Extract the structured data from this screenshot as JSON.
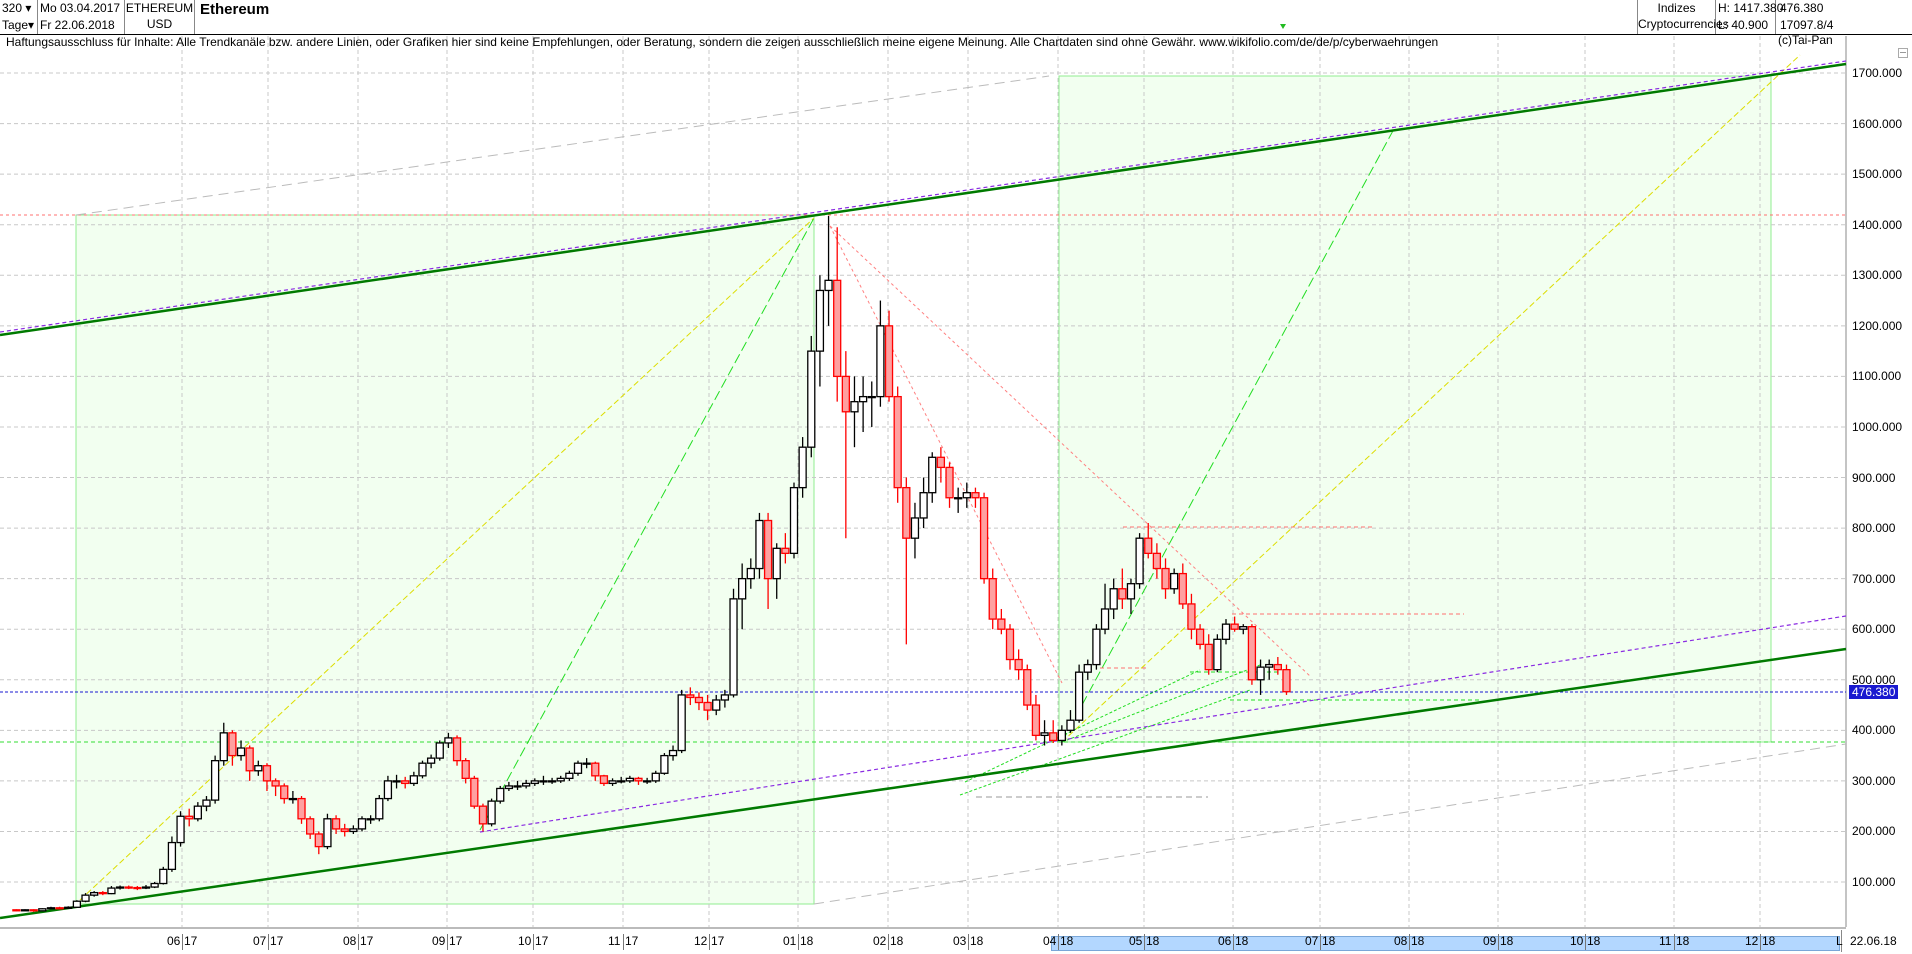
{
  "header": {
    "count": "320",
    "period": "Tage",
    "date_from": "Mo 03.04.2017",
    "date_to": "Fr 22.06.2018",
    "symbol": "ETHEREUM",
    "currency": "USD",
    "title": "Ethereum",
    "group1": "Indizes",
    "group2": "Cryptocurrencies",
    "high": "H: 1417.380",
    "low": "L: 40.900",
    "last": "476.380",
    "volume": "17097.8/4"
  },
  "disclaimer": "Haftungsausschluss für Inhalte: Alle Trendkanäle bzw. andere Linien, oder Grafiken hier sind keine Empfehlungen, oder Beratung, sondern die zeigen ausschließlich meine eigene Meinung. Alle Chartdaten sind ohne Gewähr.  www.wikifolio.com/de/de/p/cyberwaehrungen",
  "copyright": "(c)Tai-Pan",
  "bottom": {
    "mode": "L",
    "date": "22.06.18"
  },
  "colors": {
    "up_fill": "#ffffff",
    "down_fill": "#ffa0a0",
    "down_edge": "#ff0000",
    "channel": "#007a00",
    "price_line": "#1a1ad0",
    "box_fill": "#f2fff0"
  },
  "chart_data": {
    "type": "candlestick",
    "title": "Ethereum",
    "interval_days": 3,
    "start_date": "2017-04-03",
    "ylim": [
      0,
      1750
    ],
    "grid": true,
    "yticks": [
      "100.000",
      "200.000",
      "300.000",
      "400.000",
      "500.000",
      "600.000",
      "700.000",
      "800.000",
      "900.000",
      "1000.000",
      "1100.000",
      "1200.000",
      "1300.000",
      "1400.000",
      "1500.000",
      "1600.000",
      "1700.000"
    ],
    "xticks": [
      {
        "m": "06",
        "y": "17"
      },
      {
        "m": "07",
        "y": "17"
      },
      {
        "m": "08",
        "y": "17"
      },
      {
        "m": "09",
        "y": "17"
      },
      {
        "m": "10",
        "y": "17"
      },
      {
        "m": "11",
        "y": "17"
      },
      {
        "m": "12",
        "y": "17"
      },
      {
        "m": "01",
        "y": "18"
      },
      {
        "m": "02",
        "y": "18"
      },
      {
        "m": "03",
        "y": "18"
      },
      {
        "m": "04",
        "y": "18"
      },
      {
        "m": "05",
        "y": "18"
      },
      {
        "m": "06",
        "y": "18"
      },
      {
        "m": "07",
        "y": "18"
      },
      {
        "m": "08",
        "y": "18"
      },
      {
        "m": "09",
        "y": "18"
      },
      {
        "m": "10",
        "y": "18"
      },
      {
        "m": "11",
        "y": "18"
      },
      {
        "m": "12",
        "y": "18"
      }
    ],
    "last_price": "476.380",
    "ohlc": [
      [
        45,
        46,
        42,
        44
      ],
      [
        44,
        46,
        43,
        45
      ],
      [
        45,
        46,
        40.9,
        43
      ],
      [
        43,
        48,
        42,
        47
      ],
      [
        47,
        51,
        46,
        49
      ],
      [
        49,
        51,
        47,
        48
      ],
      [
        48,
        52,
        47,
        50
      ],
      [
        50,
        64,
        49,
        62
      ],
      [
        62,
        78,
        60,
        74
      ],
      [
        74,
        82,
        71,
        79
      ],
      [
        79,
        82,
        74,
        77
      ],
      [
        77,
        92,
        76,
        88
      ],
      [
        88,
        93,
        85,
        90
      ],
      [
        90,
        93,
        86,
        89
      ],
      [
        89,
        92,
        84,
        88
      ],
      [
        88,
        94,
        86,
        90
      ],
      [
        90,
        100,
        88,
        97
      ],
      [
        97,
        130,
        95,
        125
      ],
      [
        125,
        190,
        120,
        178
      ],
      [
        178,
        240,
        170,
        230
      ],
      [
        230,
        245,
        210,
        225
      ],
      [
        225,
        258,
        220,
        250
      ],
      [
        250,
        270,
        240,
        262
      ],
      [
        262,
        350,
        255,
        340
      ],
      [
        340,
        415,
        330,
        395
      ],
      [
        395,
        400,
        330,
        350
      ],
      [
        350,
        380,
        340,
        365
      ],
      [
        365,
        370,
        300,
        320
      ],
      [
        320,
        340,
        310,
        330
      ],
      [
        330,
        335,
        280,
        300
      ],
      [
        300,
        305,
        270,
        290
      ],
      [
        290,
        295,
        255,
        265
      ],
      [
        265,
        280,
        255,
        265
      ],
      [
        265,
        270,
        215,
        225
      ],
      [
        225,
        230,
        185,
        195
      ],
      [
        195,
        200,
        155,
        170
      ],
      [
        170,
        235,
        165,
        225
      ],
      [
        225,
        232,
        195,
        205
      ],
      [
        205,
        215,
        190,
        200
      ],
      [
        200,
        212,
        195,
        205
      ],
      [
        205,
        230,
        200,
        225
      ],
      [
        225,
        232,
        215,
        225
      ],
      [
        225,
        272,
        220,
        265
      ],
      [
        265,
        310,
        260,
        300
      ],
      [
        300,
        312,
        285,
        300
      ],
      [
        300,
        308,
        285,
        295
      ],
      [
        295,
        318,
        290,
        310
      ],
      [
        310,
        340,
        305,
        335
      ],
      [
        335,
        352,
        325,
        345
      ],
      [
        345,
        380,
        340,
        375
      ],
      [
        375,
        395,
        365,
        385
      ],
      [
        385,
        390,
        330,
        340
      ],
      [
        340,
        345,
        295,
        305
      ],
      [
        305,
        310,
        245,
        250
      ],
      [
        250,
        255,
        200,
        215
      ],
      [
        215,
        265,
        210,
        260
      ],
      [
        260,
        290,
        255,
        285
      ],
      [
        285,
        298,
        280,
        290
      ],
      [
        290,
        300,
        282,
        290
      ],
      [
        290,
        302,
        285,
        295
      ],
      [
        295,
        305,
        290,
        300
      ],
      [
        300,
        310,
        292,
        300
      ],
      [
        300,
        306,
        294,
        300
      ],
      [
        300,
        310,
        296,
        305
      ],
      [
        305,
        320,
        300,
        315
      ],
      [
        315,
        340,
        310,
        335
      ],
      [
        335,
        345,
        325,
        335
      ],
      [
        335,
        338,
        300,
        310
      ],
      [
        310,
        312,
        290,
        295
      ],
      [
        295,
        305,
        290,
        300
      ],
      [
        300,
        308,
        295,
        300
      ],
      [
        300,
        310,
        296,
        305
      ],
      [
        305,
        308,
        292,
        300
      ],
      [
        300,
        306,
        294,
        300
      ],
      [
        300,
        320,
        296,
        315
      ],
      [
        315,
        355,
        312,
        350
      ],
      [
        350,
        370,
        340,
        360
      ],
      [
        360,
        480,
        355,
        470
      ],
      [
        470,
        485,
        450,
        465
      ],
      [
        465,
        475,
        440,
        455
      ],
      [
        455,
        470,
        420,
        440
      ],
      [
        440,
        470,
        430,
        460
      ],
      [
        460,
        480,
        445,
        470
      ],
      [
        470,
        680,
        465,
        660
      ],
      [
        660,
        730,
        600,
        700
      ],
      [
        700,
        740,
        680,
        720
      ],
      [
        720,
        830,
        700,
        815
      ],
      [
        815,
        830,
        640,
        700
      ],
      [
        700,
        770,
        660,
        760
      ],
      [
        760,
        790,
        730,
        750
      ],
      [
        750,
        890,
        740,
        880
      ],
      [
        880,
        980,
        860,
        960
      ],
      [
        960,
        1180,
        940,
        1150
      ],
      [
        1150,
        1300,
        1080,
        1270
      ],
      [
        1270,
        1417.38,
        1200,
        1290
      ],
      [
        1290,
        1395,
        1050,
        1100
      ],
      [
        1100,
        1150,
        780,
        1030
      ],
      [
        1030,
        1100,
        960,
        1050
      ],
      [
        1050,
        1100,
        990,
        1060
      ],
      [
        1060,
        1090,
        1000,
        1060
      ],
      [
        1060,
        1250,
        1040,
        1200
      ],
      [
        1200,
        1230,
        1050,
        1060
      ],
      [
        1060,
        1080,
        850,
        880
      ],
      [
        880,
        900,
        570,
        780
      ],
      [
        780,
        850,
        740,
        820
      ],
      [
        820,
        900,
        800,
        870
      ],
      [
        870,
        950,
        850,
        940
      ],
      [
        940,
        960,
        890,
        920
      ],
      [
        920,
        930,
        840,
        860
      ],
      [
        860,
        880,
        830,
        860
      ],
      [
        860,
        890,
        840,
        870
      ],
      [
        870,
        880,
        840,
        860
      ],
      [
        860,
        870,
        690,
        700
      ],
      [
        700,
        720,
        600,
        620
      ],
      [
        620,
        640,
        590,
        600
      ],
      [
        600,
        610,
        520,
        540
      ],
      [
        540,
        560,
        500,
        520
      ],
      [
        520,
        530,
        440,
        450
      ],
      [
        450,
        470,
        380,
        390
      ],
      [
        390,
        420,
        370,
        395
      ],
      [
        395,
        420,
        375,
        380
      ],
      [
        380,
        410,
        370,
        400
      ],
      [
        400,
        440,
        395,
        420
      ],
      [
        420,
        530,
        415,
        515
      ],
      [
        515,
        540,
        500,
        530
      ],
      [
        530,
        610,
        520,
        600
      ],
      [
        600,
        690,
        590,
        640
      ],
      [
        640,
        700,
        620,
        680
      ],
      [
        680,
        720,
        640,
        660
      ],
      [
        660,
        700,
        630,
        690
      ],
      [
        690,
        790,
        680,
        780
      ],
      [
        780,
        810,
        740,
        750
      ],
      [
        750,
        770,
        700,
        720
      ],
      [
        720,
        740,
        660,
        680
      ],
      [
        680,
        720,
        670,
        710
      ],
      [
        710,
        730,
        640,
        650
      ],
      [
        650,
        670,
        580,
        600
      ],
      [
        600,
        610,
        560,
        570
      ],
      [
        570,
        590,
        510,
        520
      ],
      [
        520,
        590,
        515,
        580
      ],
      [
        580,
        620,
        570,
        610
      ],
      [
        610,
        625,
        595,
        600
      ],
      [
        600,
        610,
        590,
        605
      ],
      [
        605,
        610,
        490,
        500
      ],
      [
        500,
        540,
        470,
        525
      ],
      [
        525,
        540,
        500,
        530
      ],
      [
        530,
        545,
        510,
        520
      ],
      [
        520,
        530,
        470,
        476.38
      ]
    ]
  }
}
